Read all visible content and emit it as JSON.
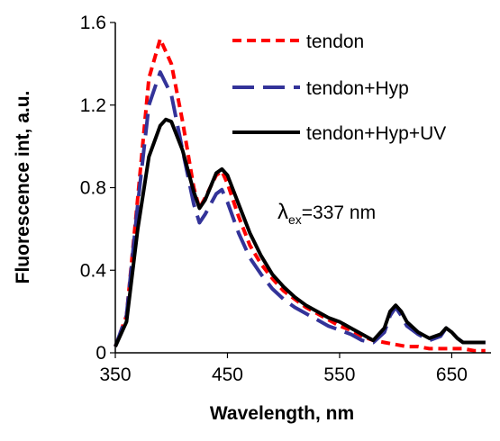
{
  "chart_data": {
    "type": "line",
    "title": "",
    "xlabel": "Wavelength, nm",
    "ylabel": "Fluorescence int, a.u.",
    "xlim": [
      350,
      685
    ],
    "ylim": [
      0,
      1.6
    ],
    "xticks": [
      350,
      450,
      550,
      650
    ],
    "xtick_labels": [
      "350",
      "450",
      "550",
      "650"
    ],
    "yticks": [
      0,
      0.4,
      0.8,
      1.2,
      1.6
    ],
    "ytick_labels": [
      "0",
      "0.4",
      "0.8",
      "1.2",
      "1.6"
    ],
    "grid": false,
    "legend": "top-right",
    "annotation": {
      "symbol": "λ",
      "subscript": "ex",
      "text": "=337 nm"
    },
    "series": [
      {
        "name": "tendon",
        "color": "#ff0000",
        "style": "dashed",
        "x": [
          350,
          360,
          370,
          380,
          390,
          400,
          410,
          420,
          425,
          430,
          440,
          445,
          450,
          460,
          470,
          480,
          490,
          500,
          510,
          520,
          530,
          540,
          550,
          560,
          570,
          580,
          590,
          600,
          610,
          620,
          630,
          640,
          650,
          660,
          670,
          680
        ],
        "y": [
          0.03,
          0.18,
          0.75,
          1.33,
          1.52,
          1.4,
          1.12,
          0.8,
          0.7,
          0.75,
          0.86,
          0.88,
          0.82,
          0.66,
          0.52,
          0.43,
          0.36,
          0.3,
          0.26,
          0.22,
          0.19,
          0.16,
          0.13,
          0.11,
          0.08,
          0.06,
          0.05,
          0.04,
          0.03,
          0.03,
          0.02,
          0.02,
          0.02,
          0.02,
          0.01,
          0.01
        ]
      },
      {
        "name": "tendon+Hyp",
        "color": "#333399",
        "style": "long-dash",
        "x": [
          350,
          360,
          370,
          380,
          390,
          400,
          410,
          420,
          425,
          430,
          440,
          445,
          450,
          460,
          470,
          480,
          490,
          500,
          510,
          520,
          530,
          540,
          550,
          560,
          570,
          580,
          590,
          595,
          600,
          605,
          610,
          620,
          630,
          640,
          645,
          650,
          655,
          660,
          670,
          680
        ],
        "y": [
          0.03,
          0.18,
          0.72,
          1.2,
          1.36,
          1.25,
          0.98,
          0.72,
          0.63,
          0.67,
          0.77,
          0.79,
          0.73,
          0.58,
          0.46,
          0.38,
          0.31,
          0.26,
          0.22,
          0.19,
          0.16,
          0.13,
          0.11,
          0.09,
          0.06,
          0.05,
          0.1,
          0.18,
          0.22,
          0.18,
          0.13,
          0.09,
          0.06,
          0.08,
          0.12,
          0.1,
          0.07,
          0.05,
          0.05,
          0.05
        ]
      },
      {
        "name": "tendon+Hyp+UV",
        "color": "#000000",
        "style": "solid",
        "x": [
          350,
          360,
          370,
          380,
          390,
          395,
          400,
          410,
          420,
          425,
          430,
          440,
          445,
          450,
          460,
          470,
          480,
          490,
          500,
          510,
          520,
          530,
          540,
          550,
          560,
          570,
          580,
          590,
          595,
          600,
          605,
          610,
          620,
          630,
          640,
          645,
          650,
          655,
          660,
          670,
          680
        ],
        "y": [
          0.03,
          0.15,
          0.6,
          0.95,
          1.1,
          1.13,
          1.12,
          0.98,
          0.78,
          0.7,
          0.74,
          0.87,
          0.89,
          0.86,
          0.72,
          0.58,
          0.47,
          0.38,
          0.32,
          0.27,
          0.23,
          0.2,
          0.17,
          0.15,
          0.12,
          0.09,
          0.06,
          0.12,
          0.2,
          0.23,
          0.2,
          0.15,
          0.1,
          0.07,
          0.09,
          0.12,
          0.1,
          0.07,
          0.05,
          0.05,
          0.05
        ]
      }
    ]
  }
}
